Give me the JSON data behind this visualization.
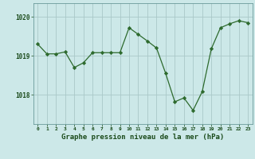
{
  "x": [
    0,
    1,
    2,
    3,
    4,
    5,
    6,
    7,
    8,
    9,
    10,
    11,
    12,
    13,
    14,
    15,
    16,
    17,
    18,
    19,
    20,
    21,
    22,
    23
  ],
  "y": [
    1019.3,
    1019.05,
    1019.05,
    1019.1,
    1018.7,
    1018.82,
    1019.08,
    1019.08,
    1019.08,
    1019.08,
    1019.72,
    1019.55,
    1019.38,
    1019.2,
    1018.55,
    1017.82,
    1017.92,
    1017.6,
    1018.08,
    1019.18,
    1019.72,
    1019.82,
    1019.9,
    1019.85
  ],
  "line_color": "#2d6a2d",
  "marker": "D",
  "marker_size": 2.2,
  "bg_color": "#cce8e8",
  "grid_color": "#aac8c8",
  "tick_label_color": "#1a4a1a",
  "xlabel": "Graphe pression niveau de la mer (hPa)",
  "xlabel_fontsize": 6.5,
  "ylabel_values": [
    1018,
    1019,
    1020
  ],
  "xlim": [
    -0.5,
    23.5
  ],
  "ylim": [
    1017.25,
    1020.35
  ],
  "figsize": [
    3.2,
    2.0
  ],
  "dpi": 100
}
